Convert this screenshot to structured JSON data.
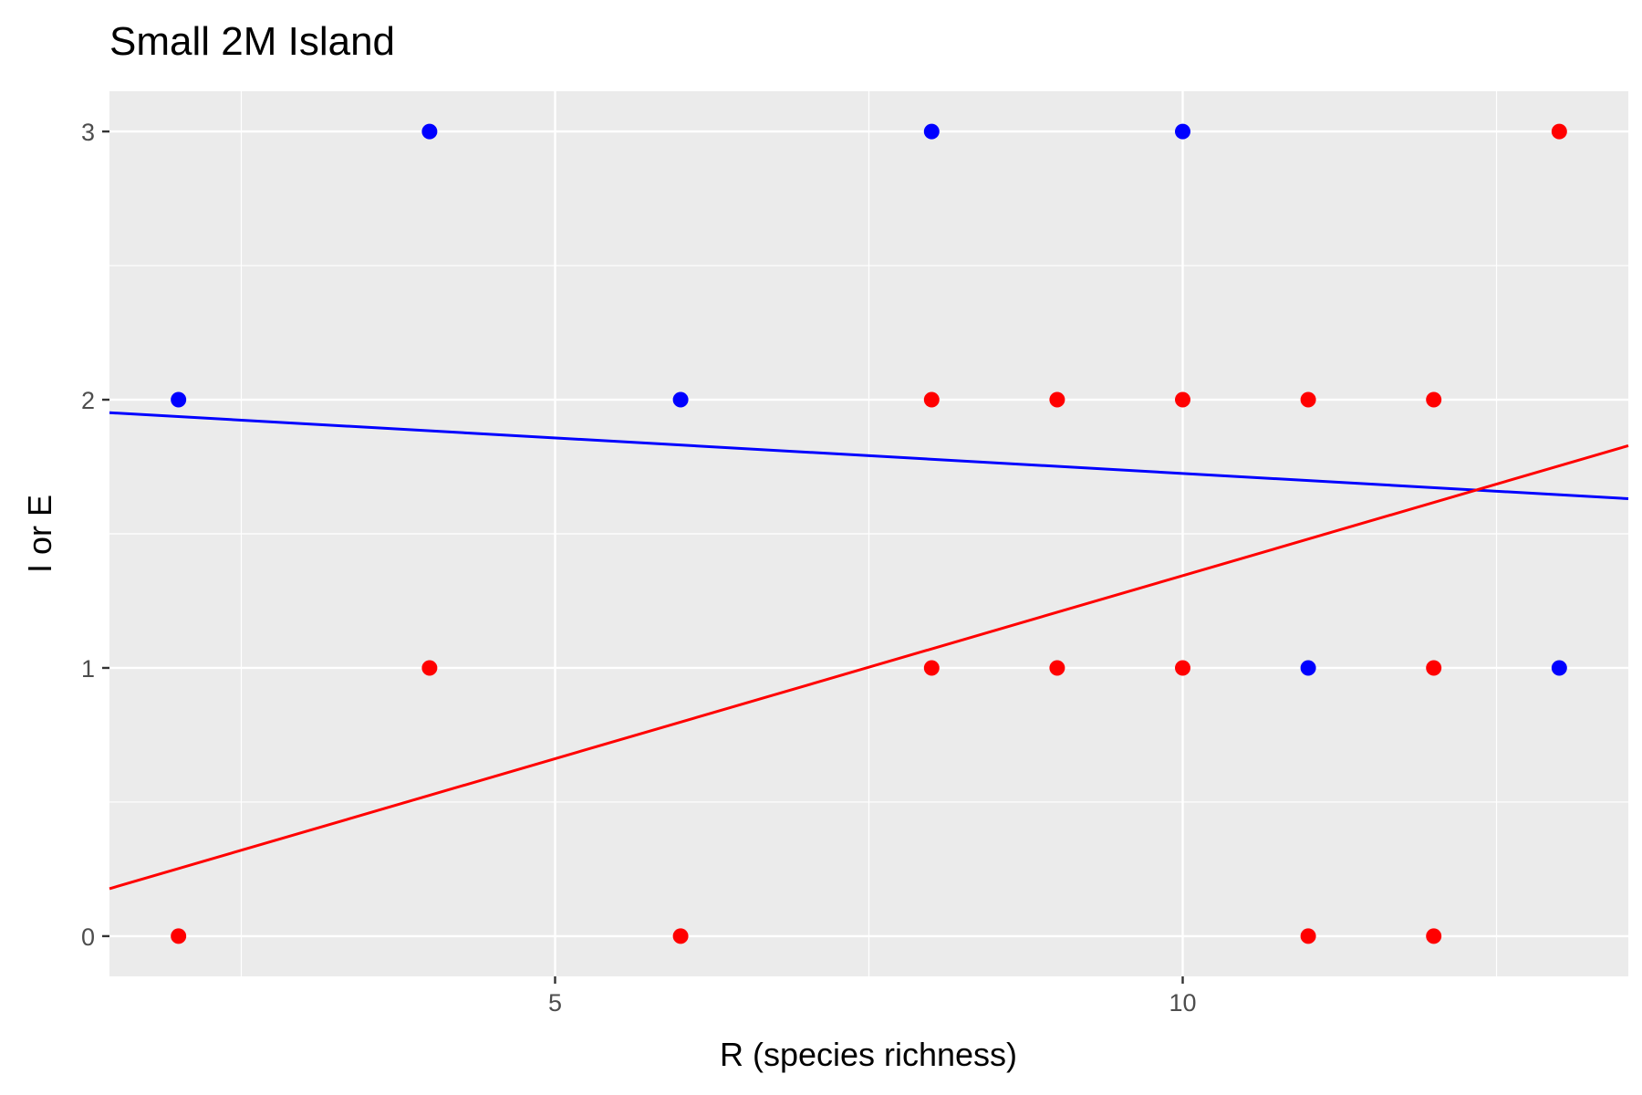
{
  "chart_data": {
    "type": "scatter",
    "title": "Small 2M Island",
    "xlabel": "R (species richness)",
    "ylabel": "I or E",
    "xlim": [
      1.45,
      13.55
    ],
    "ylim": [
      -0.15,
      3.15
    ],
    "x_ticks": [
      5,
      10
    ],
    "y_ticks": [
      0,
      1,
      2,
      3
    ],
    "x_minor": [
      2.5,
      7.5,
      12.5
    ],
    "y_minor": [
      0.5,
      1.5,
      2.5
    ],
    "grid": true,
    "legend": "none",
    "series": [
      {
        "color": "#0000ff",
        "points": [
          [
            2,
            2
          ],
          [
            4,
            3
          ],
          [
            6,
            2
          ],
          [
            8,
            3
          ],
          [
            10,
            3
          ],
          [
            11,
            1
          ],
          [
            13,
            1
          ]
        ],
        "fit": {
          "intercept": 1.99,
          "slope": -0.0265
        }
      },
      {
        "color": "#ff0000",
        "points": [
          [
            2,
            0
          ],
          [
            4,
            1
          ],
          [
            6,
            0
          ],
          [
            8,
            2
          ],
          [
            8,
            1
          ],
          [
            9,
            2
          ],
          [
            9,
            1
          ],
          [
            10,
            2
          ],
          [
            10,
            1
          ],
          [
            11,
            2
          ],
          [
            11,
            0
          ],
          [
            12,
            2
          ],
          [
            12,
            1
          ],
          [
            12,
            0
          ],
          [
            13,
            3
          ]
        ],
        "fit": {
          "intercept": -0.021,
          "slope": 0.1365
        }
      }
    ]
  }
}
